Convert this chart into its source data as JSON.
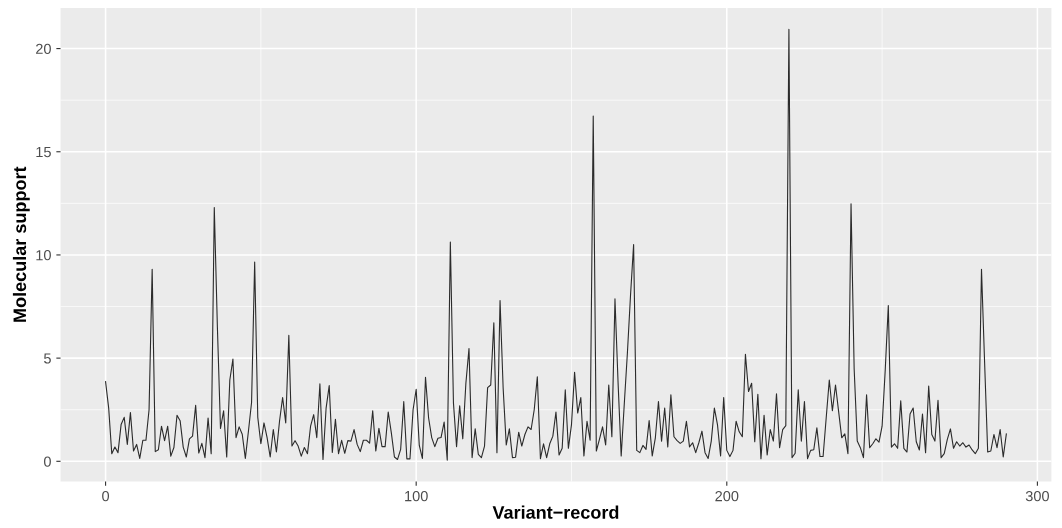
{
  "chart_data": {
    "type": "line",
    "xlabel": "Variant−record",
    "ylabel": "Molecular support",
    "xlim": [
      -14.5,
      304.5
    ],
    "ylim": [
      -0.98,
      21.97
    ],
    "xticks": [
      0,
      100,
      200,
      300
    ],
    "yticks": [
      0,
      5,
      10,
      15,
      20
    ],
    "grid": true,
    "marker": "none",
    "line_style": "solid",
    "series": [
      {
        "color": "#2b2b2b",
        "x": [
          0,
          1,
          2,
          3,
          4,
          5,
          6,
          7,
          8,
          9,
          10,
          11,
          12,
          13,
          14,
          15,
          16,
          17,
          18,
          19,
          20,
          21,
          22,
          23,
          24,
          25,
          26,
          27,
          28,
          29,
          30,
          31,
          32,
          33,
          34,
          35,
          36,
          37,
          38,
          39,
          40,
          41,
          42,
          43,
          44,
          45,
          46,
          47,
          48,
          49,
          50,
          51,
          52,
          53,
          54,
          55,
          56,
          57,
          58,
          59,
          60,
          61,
          62,
          63,
          64,
          65,
          66,
          67,
          68,
          69,
          70,
          71,
          72,
          73,
          74,
          75,
          76,
          77,
          78,
          79,
          80,
          81,
          82,
          83,
          84,
          85,
          86,
          87,
          88,
          89,
          90,
          91,
          92,
          93,
          94,
          95,
          96,
          97,
          98,
          99,
          100,
          101,
          102,
          103,
          104,
          105,
          106,
          107,
          108,
          109,
          110,
          111,
          112,
          113,
          114,
          115,
          116,
          117,
          118,
          119,
          120,
          121,
          122,
          123,
          124,
          125,
          126,
          127,
          128,
          129,
          130,
          131,
          132,
          133,
          134,
          135,
          136,
          137,
          138,
          139,
          140,
          141,
          142,
          143,
          144,
          145,
          146,
          147,
          148,
          149,
          150,
          151,
          152,
          153,
          154,
          155,
          156,
          157,
          158,
          159,
          160,
          161,
          162,
          163,
          164,
          165,
          166,
          167,
          168,
          169,
          170,
          171,
          172,
          173,
          174,
          175,
          176,
          177,
          178,
          179,
          180,
          181,
          182,
          183,
          184,
          185,
          186,
          187,
          188,
          189,
          190,
          191,
          192,
          193,
          194,
          195,
          196,
          197,
          198,
          199,
          200,
          201,
          202,
          203,
          204,
          205,
          206,
          207,
          208,
          209,
          210,
          211,
          212,
          213,
          214,
          215,
          216,
          217,
          218,
          219,
          220,
          221,
          222,
          223,
          224,
          225,
          226,
          227,
          228,
          229,
          230,
          231,
          232,
          233,
          234,
          235,
          236,
          237,
          238,
          239,
          240,
          241,
          242,
          243,
          244,
          245,
          246,
          247,
          248,
          249,
          250,
          251,
          252,
          253,
          254,
          255,
          256,
          257,
          258,
          259,
          260,
          261,
          262,
          263,
          264,
          265,
          266,
          267,
          268,
          269,
          270,
          271,
          272,
          273,
          274,
          275,
          276,
          277,
          278,
          279,
          280,
          281,
          282,
          283,
          284,
          285,
          286,
          287,
          288,
          289,
          290
        ],
        "values": [
          3.86,
          2.58,
          0.37,
          0.69,
          0.42,
          1.78,
          2.13,
          0.82,
          2.36,
          0.5,
          0.82,
          0.14,
          1.02,
          1.02,
          2.5,
          9.31,
          0.47,
          0.56,
          1.7,
          1.0,
          1.7,
          0.25,
          0.67,
          2.23,
          1.97,
          0.69,
          0.21,
          1.09,
          1.22,
          2.71,
          0.4,
          0.87,
          0.18,
          2.1,
          0.37,
          12.3,
          6.5,
          1.59,
          2.45,
          0.21,
          3.94,
          4.95,
          1.15,
          1.67,
          1.31,
          0.14,
          1.47,
          2.85,
          9.66,
          2.13,
          0.85,
          1.86,
          1.15,
          0.21,
          1.54,
          0.45,
          1.94,
          3.09,
          1.86,
          6.1,
          0.74,
          1.0,
          0.74,
          0.25,
          0.67,
          0.37,
          1.7,
          2.26,
          1.15,
          3.75,
          0.09,
          2.58,
          3.67,
          0.43,
          2.03,
          0.37,
          1.02,
          0.39,
          1.0,
          0.98,
          1.54,
          0.82,
          0.47,
          1.02,
          1.02,
          0.88,
          2.45,
          0.5,
          1.6,
          0.71,
          0.71,
          2.39,
          1.38,
          0.21,
          0.09,
          0.58,
          2.89,
          0.12,
          0.12,
          2.5,
          3.49,
          0.77,
          0.14,
          4.07,
          2.1,
          1.15,
          0.71,
          1.12,
          1.15,
          1.9,
          0.06,
          10.63,
          2.82,
          0.71,
          2.69,
          1.09,
          3.78,
          5.46,
          0.18,
          1.57,
          0.34,
          0.18,
          0.74,
          3.57,
          3.7,
          6.71,
          0.42,
          7.79,
          3.54,
          0.79,
          1.57,
          0.18,
          0.2,
          1.41,
          0.74,
          1.3,
          1.67,
          1.54,
          2.5,
          4.1,
          0.13,
          0.85,
          0.18,
          0.85,
          1.22,
          2.39,
          0.31,
          0.63,
          3.46,
          0.63,
          1.78,
          4.31,
          2.34,
          3.09,
          0.26,
          1.94,
          1.02,
          16.73,
          0.5,
          1.06,
          1.67,
          0.79,
          3.7,
          1.19,
          7.87,
          3.8,
          0.26,
          2.79,
          5.25,
          8.03,
          10.5,
          0.53,
          0.42,
          0.77,
          0.58,
          1.97,
          0.26,
          1.14,
          2.9,
          0.98,
          2.58,
          0.7,
          3.22,
          1.19,
          1.0,
          0.87,
          0.98,
          1.94,
          0.7,
          0.9,
          0.42,
          0.9,
          1.46,
          0.42,
          0.14,
          0.98,
          2.58,
          1.78,
          0.26,
          3.09,
          0.53,
          0.23,
          0.53,
          1.94,
          1.43,
          1.19,
          5.19,
          3.38,
          3.78,
          0.95,
          3.25,
          0.13,
          2.23,
          0.31,
          1.54,
          0.98,
          3.27,
          0.66,
          1.54,
          1.73,
          20.93,
          0.18,
          0.39,
          3.46,
          0.98,
          2.9,
          0.13,
          0.53,
          0.56,
          1.62,
          0.23,
          0.23,
          2.1,
          3.94,
          2.45,
          3.7,
          2.42,
          1.14,
          1.33,
          0.37,
          12.48,
          4.5,
          0.98,
          0.66,
          0.18,
          3.22,
          0.66,
          0.85,
          1.09,
          0.93,
          1.7,
          4.4,
          7.55,
          0.69,
          0.85,
          0.63,
          2.93,
          0.63,
          0.45,
          2.29,
          2.58,
          0.95,
          0.55,
          2.29,
          0.42,
          3.65,
          1.3,
          0.98,
          2.96,
          0.18,
          0.37,
          1.06,
          1.57,
          0.63,
          0.95,
          0.74,
          0.9,
          0.69,
          0.79,
          0.55,
          0.37,
          0.63,
          9.31,
          4.8,
          0.45,
          0.5,
          1.3,
          0.66,
          1.54,
          0.21,
          1.33
        ]
      }
    ]
  }
}
